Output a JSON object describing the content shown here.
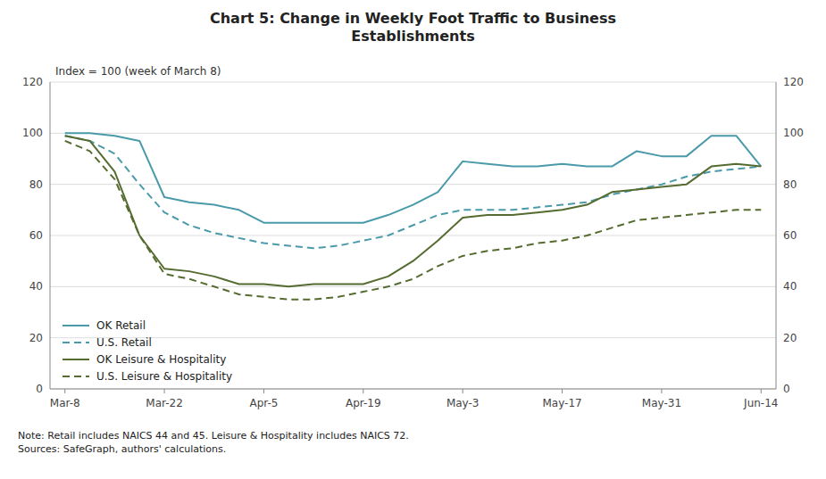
{
  "chart_data": {
    "type": "line",
    "title": "Chart 5: Change in Weekly Foot Traffic to Business\nEstablishments",
    "annotation": "Index = 100 (week of March 8)",
    "note": "Note: Retail includes NAICS 44 and 45. Leisure & Hospitality includes NAICS 72.\nSources: SafeGraph, authors' calculations.",
    "x": [
      0,
      0.5,
      1,
      1.5,
      2,
      2.5,
      3,
      3.5,
      4,
      4.5,
      5,
      5.5,
      6,
      6.5,
      7,
      7.5,
      8,
      8.5,
      9,
      9.5,
      10,
      10.5,
      11,
      11.5,
      12,
      12.5,
      13,
      13.5,
      14
    ],
    "xlim": [
      -0.3,
      14.3
    ],
    "xticks": [
      {
        "value": 0,
        "label": "Mar-8"
      },
      {
        "value": 2,
        "label": "Mar-22"
      },
      {
        "value": 4,
        "label": "Apr-5"
      },
      {
        "value": 6,
        "label": "Apr-19"
      },
      {
        "value": 8,
        "label": "May-3"
      },
      {
        "value": 10,
        "label": "May-17"
      },
      {
        "value": 12,
        "label": "May-31"
      },
      {
        "value": 14,
        "label": "Jun-14"
      }
    ],
    "ylim": [
      0,
      120
    ],
    "yticks": [
      0,
      20,
      40,
      60,
      80,
      100,
      120
    ],
    "y2lim": [
      0,
      120
    ],
    "y2ticks": [
      0,
      20,
      40,
      60,
      80,
      100,
      120
    ],
    "grid": "y",
    "legend": "lower left",
    "series": [
      {
        "name": "OK Retail",
        "color": "#4a9aaa",
        "line_style": "solid",
        "values": [
          100,
          100,
          99,
          97,
          75,
          73,
          72,
          70,
          65,
          65,
          65,
          65,
          65,
          68,
          72,
          77,
          89,
          88,
          87,
          87,
          88,
          87,
          87,
          93,
          91,
          91,
          99,
          99,
          87
        ]
      },
      {
        "name": "U.S. Retail",
        "color": "#4a9aaa",
        "line_style": "dashed",
        "values": [
          99,
          97,
          92,
          80,
          69,
          64,
          61,
          59,
          57,
          56,
          55,
          56,
          58,
          60,
          64,
          68,
          70,
          70,
          70,
          71,
          72,
          73,
          76,
          78,
          80,
          83,
          85,
          86,
          87
        ]
      },
      {
        "name": "OK Leisure & Hospitality",
        "color": "#556b2f",
        "line_style": "solid",
        "values": [
          99,
          97,
          85,
          60,
          47,
          46,
          44,
          41,
          41,
          40,
          41,
          41,
          41,
          44,
          50,
          58,
          67,
          68,
          68,
          69,
          70,
          72,
          77,
          78,
          79,
          80,
          87,
          88,
          87
        ]
      },
      {
        "name": "U.S. Leisure & Hospitality",
        "color": "#556b2f",
        "line_style": "dashed",
        "values": [
          97,
          93,
          82,
          60,
          45,
          43,
          40,
          37,
          36,
          35,
          35,
          36,
          38,
          40,
          43,
          48,
          52,
          54,
          55,
          57,
          58,
          60,
          63,
          66,
          67,
          68,
          69,
          70,
          70
        ]
      }
    ]
  }
}
